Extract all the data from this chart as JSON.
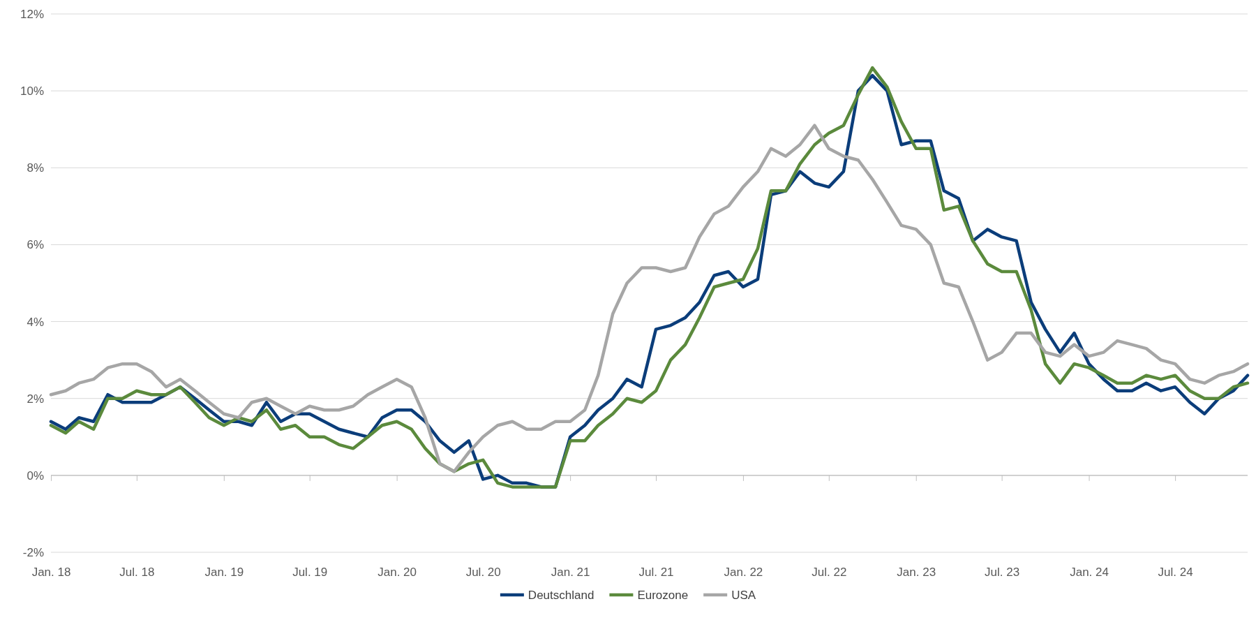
{
  "chart_data": {
    "type": "line",
    "x": [
      "2018-01",
      "2018-02",
      "2018-03",
      "2018-04",
      "2018-05",
      "2018-06",
      "2018-07",
      "2018-08",
      "2018-09",
      "2018-10",
      "2018-11",
      "2018-12",
      "2019-01",
      "2019-02",
      "2019-03",
      "2019-04",
      "2019-05",
      "2019-06",
      "2019-07",
      "2019-08",
      "2019-09",
      "2019-10",
      "2019-11",
      "2019-12",
      "2020-01",
      "2020-02",
      "2020-03",
      "2020-04",
      "2020-05",
      "2020-06",
      "2020-07",
      "2020-08",
      "2020-09",
      "2020-10",
      "2020-11",
      "2020-12",
      "2021-01",
      "2021-02",
      "2021-03",
      "2021-04",
      "2021-05",
      "2021-06",
      "2021-07",
      "2021-08",
      "2021-09",
      "2021-10",
      "2021-11",
      "2021-12",
      "2022-01",
      "2022-02",
      "2022-03",
      "2022-04",
      "2022-05",
      "2022-06",
      "2022-07",
      "2022-08",
      "2022-09",
      "2022-10",
      "2022-11",
      "2022-12",
      "2023-01",
      "2023-02",
      "2023-03",
      "2023-04",
      "2023-05",
      "2023-06",
      "2023-07",
      "2023-08",
      "2023-09",
      "2023-10",
      "2023-11",
      "2023-12",
      "2024-01",
      "2024-02",
      "2024-03",
      "2024-04",
      "2024-05",
      "2024-06",
      "2024-07",
      "2024-08",
      "2024-09",
      "2024-10",
      "2024-11",
      "2024-12"
    ],
    "series": [
      {
        "name": "Deutschland",
        "color": "#0b3d7a",
        "values": [
          1.4,
          1.2,
          1.5,
          1.4,
          2.1,
          1.9,
          1.9,
          1.9,
          2.1,
          2.3,
          2.0,
          1.7,
          1.4,
          1.4,
          1.3,
          1.9,
          1.4,
          1.6,
          1.6,
          1.4,
          1.2,
          1.1,
          1.0,
          1.5,
          1.7,
          1.7,
          1.4,
          0.9,
          0.6,
          0.9,
          -0.1,
          0.0,
          -0.2,
          -0.2,
          -0.3,
          -0.3,
          1.0,
          1.3,
          1.7,
          2.0,
          2.5,
          2.3,
          3.8,
          3.9,
          4.1,
          4.5,
          5.2,
          5.3,
          4.9,
          5.1,
          7.3,
          7.4,
          7.9,
          7.6,
          7.5,
          7.9,
          10.0,
          10.4,
          10.0,
          8.6,
          8.7,
          8.7,
          7.4,
          7.2,
          6.1,
          6.4,
          6.2,
          6.1,
          4.5,
          3.8,
          3.2,
          3.7,
          2.9,
          2.5,
          2.2,
          2.2,
          2.4,
          2.2,
          2.3,
          1.9,
          1.6,
          2.0,
          2.2,
          2.6
        ]
      },
      {
        "name": "Eurozone",
        "color": "#5b8a3c",
        "values": [
          1.3,
          1.1,
          1.4,
          1.2,
          2.0,
          2.0,
          2.2,
          2.1,
          2.1,
          2.3,
          1.9,
          1.5,
          1.3,
          1.5,
          1.4,
          1.7,
          1.2,
          1.3,
          1.0,
          1.0,
          0.8,
          0.7,
          1.0,
          1.3,
          1.4,
          1.2,
          0.7,
          0.3,
          0.1,
          0.3,
          0.4,
          -0.2,
          -0.3,
          -0.3,
          -0.3,
          -0.3,
          0.9,
          0.9,
          1.3,
          1.6,
          2.0,
          1.9,
          2.2,
          3.0,
          3.4,
          4.1,
          4.9,
          5.0,
          5.1,
          5.9,
          7.4,
          7.4,
          8.1,
          8.6,
          8.9,
          9.1,
          9.9,
          10.6,
          10.1,
          9.2,
          8.5,
          8.5,
          6.9,
          7.0,
          6.1,
          5.5,
          5.3,
          5.3,
          4.3,
          2.9,
          2.4,
          2.9,
          2.8,
          2.6,
          2.4,
          2.4,
          2.6,
          2.5,
          2.6,
          2.2,
          2.0,
          2.0,
          2.3,
          2.4
        ]
      },
      {
        "name": "USA",
        "color": "#a6a6a6",
        "values": [
          2.1,
          2.2,
          2.4,
          2.5,
          2.8,
          2.9,
          2.9,
          2.7,
          2.3,
          2.5,
          2.2,
          1.9,
          1.6,
          1.5,
          1.9,
          2.0,
          1.8,
          1.6,
          1.8,
          1.7,
          1.7,
          1.8,
          2.1,
          2.3,
          2.5,
          2.3,
          1.5,
          0.3,
          0.1,
          0.6,
          1.0,
          1.3,
          1.4,
          1.2,
          1.2,
          1.4,
          1.4,
          1.7,
          2.6,
          4.2,
          5.0,
          5.4,
          5.4,
          5.3,
          5.4,
          6.2,
          6.8,
          7.0,
          7.5,
          7.9,
          8.5,
          8.3,
          8.6,
          9.1,
          8.5,
          8.3,
          8.2,
          7.7,
          7.1,
          6.5,
          6.4,
          6.0,
          5.0,
          4.9,
          4.0,
          3.0,
          3.2,
          3.7,
          3.7,
          3.2,
          3.1,
          3.4,
          3.1,
          3.2,
          3.5,
          3.4,
          3.3,
          3.0,
          2.9,
          2.5,
          2.4,
          2.6,
          2.7,
          2.9
        ]
      }
    ],
    "xlim": [
      "2018-01",
      "2024-12"
    ],
    "xticks": [
      {
        "value": "2018-01",
        "label": "Jan. 18"
      },
      {
        "value": "2018-07",
        "label": "Jul. 18"
      },
      {
        "value": "2019-01",
        "label": "Jan. 19"
      },
      {
        "value": "2019-07",
        "label": "Jul. 19"
      },
      {
        "value": "2020-01",
        "label": "Jan. 20"
      },
      {
        "value": "2020-07",
        "label": "Jul. 20"
      },
      {
        "value": "2021-01",
        "label": "Jan. 21"
      },
      {
        "value": "2021-07",
        "label": "Jul. 21"
      },
      {
        "value": "2022-01",
        "label": "Jan. 22"
      },
      {
        "value": "2022-07",
        "label": "Jul. 22"
      },
      {
        "value": "2023-01",
        "label": "Jan. 23"
      },
      {
        "value": "2023-07",
        "label": "Jul. 23"
      },
      {
        "value": "2024-01",
        "label": "Jan. 24"
      },
      {
        "value": "2024-07",
        "label": "Jul. 24"
      }
    ],
    "ylim": [
      -2,
      12
    ],
    "yticks": [
      {
        "value": -2,
        "label": "-2%"
      },
      {
        "value": 0,
        "label": "0%"
      },
      {
        "value": 2,
        "label": "2%"
      },
      {
        "value": 4,
        "label": "4%"
      },
      {
        "value": 6,
        "label": "6%"
      },
      {
        "value": 8,
        "label": "8%"
      },
      {
        "value": 10,
        "label": "10%"
      },
      {
        "value": 12,
        "label": "12%"
      }
    ],
    "ref_lines": [
      {
        "axis": "y",
        "value": 0,
        "color": "#bfbfbf"
      }
    ],
    "grid": "y",
    "legend": "bottom",
    "marker": "none",
    "line_style": "solid"
  }
}
